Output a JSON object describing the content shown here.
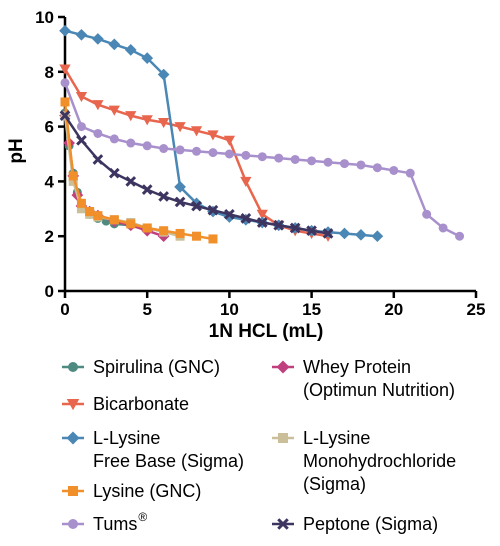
{
  "chart_data": {
    "type": "line",
    "xlabel": "1N HCL (mL)",
    "ylabel": "pH",
    "xlim": [
      0,
      25
    ],
    "ylim": [
      0,
      10
    ],
    "x_ticks": [
      0,
      5,
      10,
      15,
      20,
      25
    ],
    "y_ticks": [
      0,
      2,
      4,
      6,
      8,
      10
    ],
    "grid": false,
    "legend_position": "bottom",
    "series": [
      {
        "name": "Spirulina (GNC)",
        "legend_lines": [
          "Spirulina (GNC)"
        ],
        "color": "#4e8a80",
        "marker": "circle",
        "x": [
          0,
          0.25,
          0.5,
          0.75,
          1,
          1.5,
          2,
          2.5,
          3,
          4,
          5
        ],
        "y": [
          6.5,
          5.3,
          4.3,
          3.6,
          3.1,
          2.8,
          2.65,
          2.55,
          2.45,
          2.4,
          2.3
        ]
      },
      {
        "name": "Whey Protein (Optimun Nutrition)",
        "legend_lines": [
          "Whey Protein",
          "(Optimun Nutrition)"
        ],
        "color": "#c0407f",
        "marker": "diamond",
        "x": [
          0,
          0.25,
          0.5,
          0.75,
          1,
          1.5,
          2,
          3,
          4,
          5,
          6
        ],
        "y": [
          6.4,
          5.4,
          4.2,
          3.5,
          3.1,
          2.9,
          2.75,
          2.55,
          2.4,
          2.2,
          2.0
        ]
      },
      {
        "name": "Bicarbonate",
        "legend_lines": [
          "Bicarbonate"
        ],
        "color": "#e8664e",
        "marker": "triangle-down",
        "x": [
          0,
          1,
          2,
          3,
          4,
          5,
          6,
          7,
          8,
          9,
          10,
          11,
          12,
          13,
          14,
          15,
          16
        ],
        "y": [
          8.1,
          7.1,
          6.8,
          6.6,
          6.4,
          6.25,
          6.15,
          6.0,
          5.85,
          5.7,
          5.5,
          4.0,
          2.8,
          2.4,
          2.2,
          2.1,
          2.0
        ]
      },
      {
        "name": "L-Lysine Monohydrochloride (Sigma)",
        "legend_lines": [
          "L-Lysine",
          "Monohydrochloride",
          "(Sigma)"
        ],
        "color": "#cbbf9a",
        "marker": "square",
        "x": [
          0,
          0.5,
          1,
          1.5,
          2,
          3,
          4,
          5,
          6,
          7
        ],
        "y": [
          6.4,
          4.0,
          3.0,
          2.8,
          2.7,
          2.6,
          2.5,
          2.3,
          2.15,
          2.0
        ]
      },
      {
        "name": "L-Lysine Free Base (Sigma)",
        "legend_lines": [
          "L-Lysine",
          "Free Base (Sigma)"
        ],
        "color": "#4a87b5",
        "marker": "diamond",
        "x": [
          0,
          1,
          2,
          3,
          4,
          5,
          6,
          7,
          8,
          9,
          10,
          11,
          12,
          13,
          14,
          15,
          16,
          17,
          18,
          19
        ],
        "y": [
          9.5,
          9.35,
          9.2,
          9.0,
          8.8,
          8.5,
          7.9,
          3.8,
          3.2,
          2.9,
          2.7,
          2.6,
          2.5,
          2.4,
          2.3,
          2.2,
          2.15,
          2.1,
          2.05,
          2.0
        ]
      },
      {
        "name": "Lysine (GNC)",
        "legend_lines": [
          "Lysine (GNC)"
        ],
        "color": "#f18f2a",
        "marker": "square",
        "x": [
          0,
          0.5,
          1,
          1.5,
          2,
          3,
          4,
          5,
          6,
          7,
          8,
          9
        ],
        "y": [
          6.9,
          4.2,
          3.2,
          2.9,
          2.75,
          2.6,
          2.45,
          2.3,
          2.2,
          2.1,
          2.0,
          1.9
        ]
      },
      {
        "name": "Tums®",
        "legend_lines": [
          "Tums"
        ],
        "legend_sup": "®",
        "color": "#a890cc",
        "marker": "circle",
        "x": [
          0,
          1,
          2,
          3,
          4,
          5,
          6,
          7,
          8,
          9,
          10,
          11,
          12,
          13,
          14,
          15,
          16,
          17,
          18,
          19,
          20,
          21,
          22,
          23,
          24
        ],
        "y": [
          7.6,
          6.0,
          5.75,
          5.55,
          5.4,
          5.3,
          5.2,
          5.15,
          5.1,
          5.05,
          5.0,
          4.95,
          4.9,
          4.85,
          4.8,
          4.75,
          4.7,
          4.65,
          4.6,
          4.5,
          4.4,
          4.3,
          2.8,
          2.3,
          2.0
        ]
      },
      {
        "name": "Peptone (Sigma)",
        "legend_lines": [
          "Peptone (Sigma)"
        ],
        "color": "#3d3560",
        "marker": "x",
        "x": [
          0,
          1,
          2,
          3,
          4,
          5,
          6,
          7,
          8,
          9,
          10,
          11,
          12,
          13,
          14,
          15,
          16
        ],
        "y": [
          6.4,
          5.5,
          4.8,
          4.3,
          4.0,
          3.7,
          3.45,
          3.25,
          3.1,
          2.95,
          2.8,
          2.65,
          2.5,
          2.4,
          2.3,
          2.2,
          2.1
        ]
      }
    ]
  }
}
